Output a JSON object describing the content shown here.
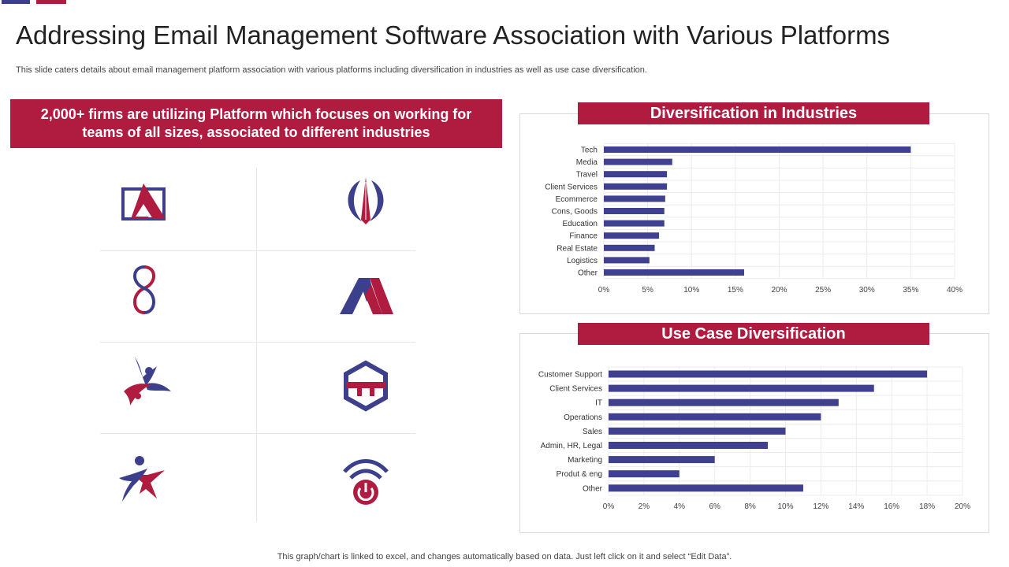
{
  "colors": {
    "brand_red": "#B01C40",
    "brand_navy": "#3C3F8C",
    "bar": "#3F4190",
    "grid": "#ececec"
  },
  "page": {
    "title": "Addressing Email Management Software Association with Various Platforms",
    "subtitle": "This slide caters details about email management platform association with various platforms including diversification in industries as well as use case diversification.",
    "callout": "2,000+ firms are utilizing Platform which focuses on working for teams of all sizes, associated to different industries",
    "footnote": "This graph/chart is linked to excel,  and changes automatically based on data. Just left click on it and select “Edit Data”."
  },
  "logos": [
    "triangle-square-logo-icon",
    "arrow-crest-logo-icon",
    "figure-eight-logo-icon",
    "double-mountain-logo-icon",
    "dancing-figures-logo-icon",
    "hexagon-logo-icon",
    "star-figure-logo-icon",
    "power-signal-logo-icon"
  ],
  "chart_data": [
    {
      "type": "bar",
      "orientation": "horizontal",
      "title": "Diversification in Industries",
      "categories": [
        "Tech",
        "Media",
        "Travel",
        "Client Services",
        "Ecommerce",
        "Cons, Goods",
        "Education",
        "Finance",
        "Real Estate",
        "Logistics",
        "Other"
      ],
      "values": [
        35,
        7.8,
        7.2,
        7.2,
        7,
        6.9,
        6.9,
        6.3,
        5.8,
        5.2,
        16
      ],
      "xlim": [
        0,
        40
      ],
      "ticks": [
        "0%",
        "5%",
        "10%",
        "15%",
        "20%",
        "25%",
        "30%",
        "35%",
        "40%"
      ],
      "unit": "%"
    },
    {
      "type": "bar",
      "orientation": "horizontal",
      "title": "Use Case Diversification",
      "categories": [
        "Customer Support",
        "Client Services",
        "IT",
        "Operations",
        "Sales",
        "Admin, HR, Legal",
        "Marketing",
        "Produt & eng",
        "Other"
      ],
      "values": [
        18,
        15,
        13,
        12,
        10,
        9,
        6,
        4,
        11
      ],
      "xlim": [
        0,
        20
      ],
      "ticks": [
        "0%",
        "2%",
        "4%",
        "6%",
        "8%",
        "10%",
        "12%",
        "14%",
        "16%",
        "18%",
        "20%"
      ],
      "unit": "%"
    }
  ]
}
